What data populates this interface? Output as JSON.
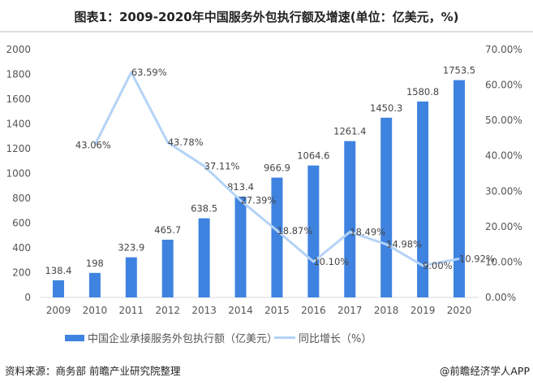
{
  "title": "图表1：2009-2020年中国服务外包执行额及增速(单位：亿美元，%)",
  "source": "资料来源：商务部 前瞻产业研究院整理",
  "brand": "@前瞻经济学人APP",
  "chart_data": {
    "type": "bar",
    "categories": [
      "2009",
      "2010",
      "2011",
      "2012",
      "2013",
      "2014",
      "2015",
      "2016",
      "2017",
      "2018",
      "2019",
      "2020"
    ],
    "series": [
      {
        "name": "中国企业承接服务外包执行额（亿美元）",
        "type": "bar",
        "axis": "left",
        "color": "#3f83e0",
        "values": [
          138.4,
          198,
          323.9,
          465.7,
          638.5,
          813.4,
          966.9,
          1064.6,
          1261.4,
          1450.3,
          1580.8,
          1753.5
        ],
        "labels": [
          "138.4",
          "198",
          "323.9",
          "465.7",
          "638.5",
          "813.4",
          "966.9",
          "1064.6",
          "1261.4",
          "1450.3",
          "1580.8",
          "1753.5"
        ]
      },
      {
        "name": "同比增长（%）",
        "type": "line",
        "axis": "right",
        "color": "#b4d3f7",
        "values": [
          null,
          43.06,
          63.59,
          43.78,
          37.11,
          27.39,
          18.87,
          10.1,
          18.49,
          14.98,
          9.0,
          10.92
        ],
        "labels": [
          "",
          "43.06%",
          "63.59%",
          "43.78%",
          "37.11%",
          "27.39%",
          "18.87%",
          "10.10%",
          "18.49%",
          "14.98%",
          "9.00%",
          "10.92%"
        ]
      }
    ],
    "ylim": [
      0,
      2000
    ],
    "yticks": [
      "0",
      "200",
      "400",
      "600",
      "800",
      "1000",
      "1200",
      "1400",
      "1600",
      "1800",
      "2000"
    ],
    "y2lim": [
      0,
      70
    ],
    "y2ticks": [
      "0.00%",
      "10.00%",
      "20.00%",
      "30.00%",
      "40.00%",
      "50.00%",
      "60.00%",
      "70.00%"
    ],
    "grid": false,
    "legend": "bottom"
  }
}
